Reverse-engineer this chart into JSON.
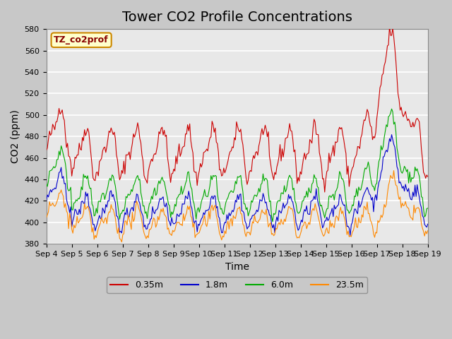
{
  "title": "Tower CO2 Profile Concentrations",
  "xlabel": "Time",
  "ylabel": "CO2 (ppm)",
  "ylim": [
    380,
    580
  ],
  "yticks": [
    380,
    400,
    420,
    440,
    460,
    480,
    500,
    520,
    540,
    560,
    580
  ],
  "x_labels": [
    "Sep 4",
    "Sep 5",
    "Sep 6",
    "Sep 7",
    "Sep 8",
    "Sep 9",
    "Sep 10",
    "Sep 11",
    "Sep 12",
    "Sep 13",
    "Sep 14",
    "Sep 15",
    "Sep 16",
    "Sep 17",
    "Sep 18",
    "Sep 19"
  ],
  "series_colors": [
    "#cc0000",
    "#0000cc",
    "#00aa00",
    "#ff8800"
  ],
  "series_labels": [
    "0.35m",
    "1.8m",
    "6.0m",
    "23.5m"
  ],
  "legend_label": "TZ_co2prof",
  "legend_bg": "#ffffcc",
  "legend_border": "#cc8800",
  "bg_color": "#e8e8e8",
  "grid_color": "#ffffff",
  "title_fontsize": 14,
  "axis_label_fontsize": 10,
  "tick_fontsize": 8,
  "n_points": 360
}
